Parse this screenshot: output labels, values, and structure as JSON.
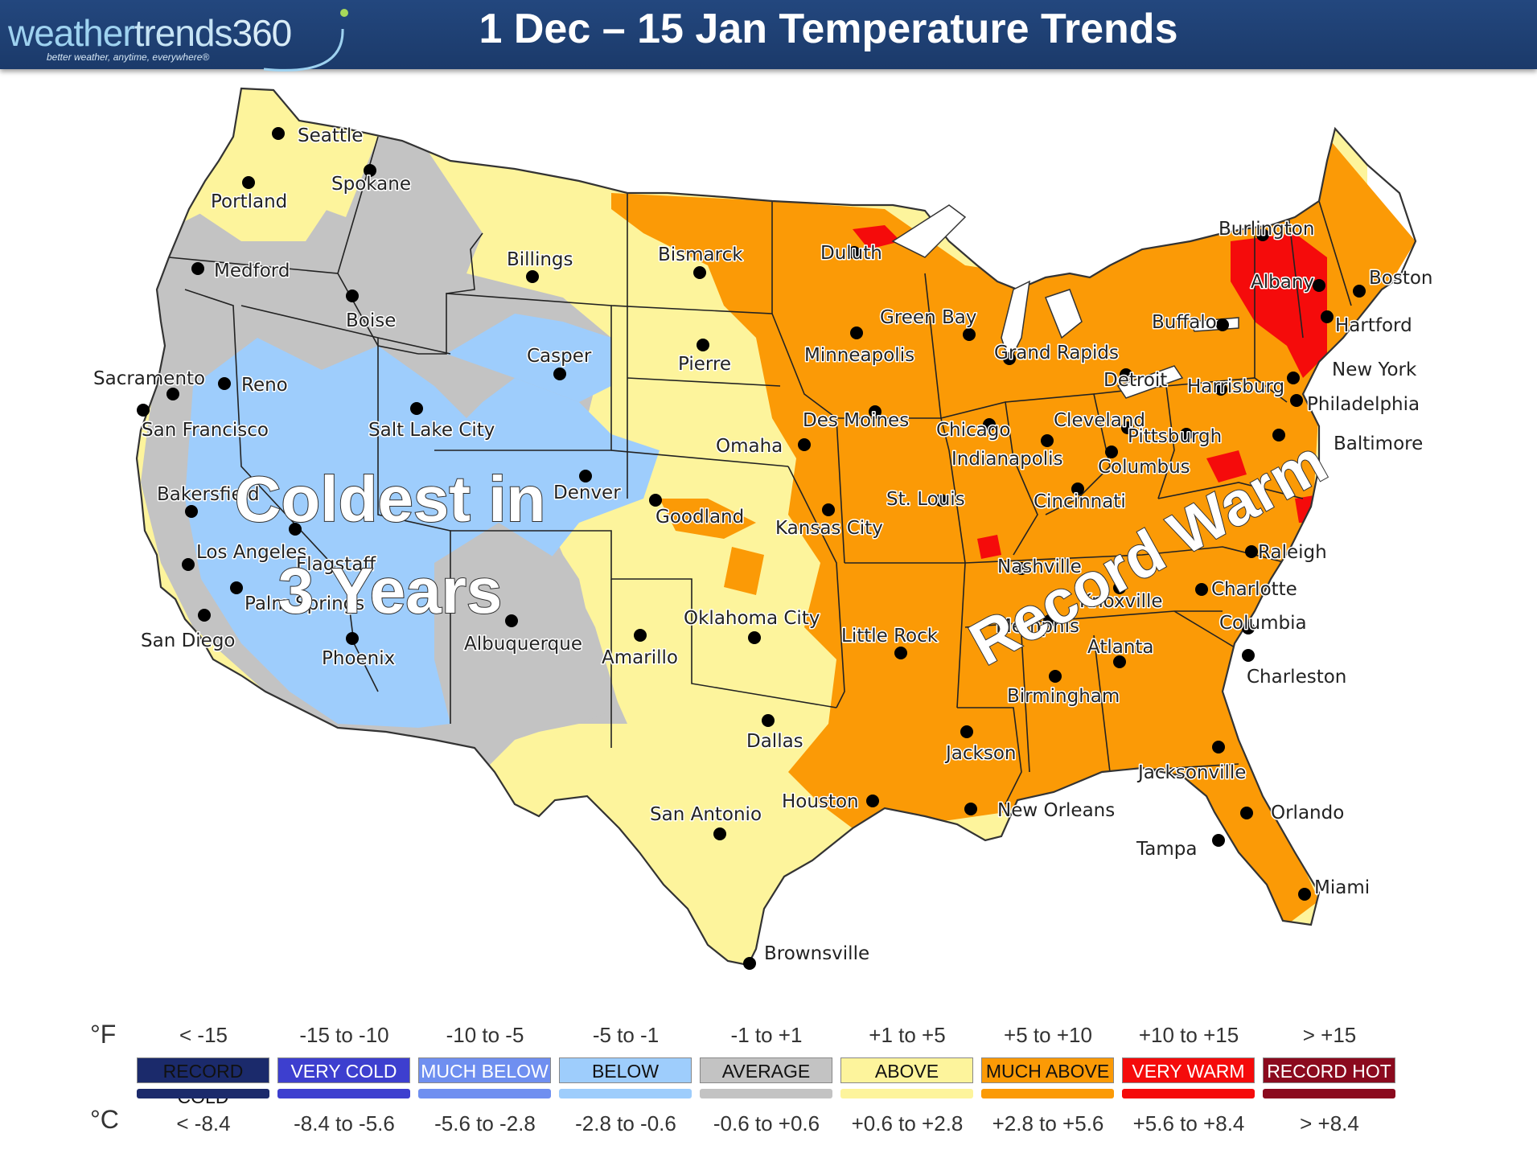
{
  "header": {
    "logo_part1": "weather",
    "logo_part2": "trends",
    "logo_part3": "360",
    "logo_tagline": "better weather, anytime, everywhere®",
    "title": "1 Dec – 15 Jan Temperature Trends"
  },
  "annotations": {
    "coldest_line1": "Coldest in",
    "coldest_line2": "3 Years",
    "record_warm": "Record Warm"
  },
  "cities": [
    "Seattle",
    "Spokane",
    "Portland",
    "Medford",
    "Boise",
    "Billings",
    "Bismarck",
    "Duluth",
    "Burlington",
    "Boston",
    "Albany",
    "Hartford",
    "Buffalo",
    "Green Bay",
    "Minneapolis",
    "Grand Rapids",
    "Detroit",
    "Harrisburg",
    "New York",
    "Philadelphia",
    "Casper",
    "Pierre",
    "Sacramento",
    "Reno",
    "San Francisco",
    "Salt Lake City",
    "Des Moines",
    "Chicago",
    "Cleveland",
    "Pittsburgh",
    "Baltimore",
    "Omaha",
    "Indianapolis",
    "Columbus",
    "Bakersfield",
    "Denver",
    "Goodland",
    "Kansas City",
    "St. Louis",
    "Cincinnati",
    "Los Angeles",
    "Flagstaff",
    "Nashville",
    "Raleigh",
    "Palm Springs",
    "Charlotte",
    "Knoxville",
    "San Diego",
    "Albuquerque",
    "Oklahoma City",
    "Little Rock",
    "Memphis",
    "Columbia",
    "Amarillo",
    "Phoenix",
    "Atlanta",
    "Charleston",
    "Birmingham",
    "Dallas",
    "Jackson",
    "Jacksonville",
    "Houston",
    "New Orleans",
    "San Antonio",
    "Orlando",
    "Tampa",
    "Miami",
    "Brownsville"
  ],
  "legend": {
    "unit_f": "°F",
    "unit_c": "°C",
    "categories": [
      {
        "label": "RECORD COLD",
        "range_f": "< -15",
        "range_c": "< -8.4",
        "color": "#1b2a6b"
      },
      {
        "label": "VERY COLD",
        "range_f": "-15 to -10",
        "range_c": "-8.4 to -5.6",
        "color": "#3d3fcf"
      },
      {
        "label": "MUCH BELOW",
        "range_f": "-10 to -5",
        "range_c": "-5.6 to -2.8",
        "color": "#6f8ff0"
      },
      {
        "label": "BELOW",
        "range_f": "-5 to -1",
        "range_c": "-2.8 to -0.6",
        "color": "#9ecdfc"
      },
      {
        "label": "AVERAGE",
        "range_f": "-1 to +1",
        "range_c": "-0.6 to +0.6",
        "color": "#c3c3c3"
      },
      {
        "label": "ABOVE",
        "range_f": "+1 to +5",
        "range_c": "+0.6 to +2.8",
        "color": "#fdf49c"
      },
      {
        "label": "MUCH ABOVE",
        "range_f": "+5 to +10",
        "range_c": "+2.8 to +5.6",
        "color": "#fb9a06"
      },
      {
        "label": "VERY WARM",
        "range_f": "+10 to +15",
        "range_c": "+5.6 to +8.4",
        "color": "#f50b0b"
      },
      {
        "label": "RECORD HOT",
        "range_f": "> +15",
        "range_c": "> +8.4",
        "color": "#8b0a1e"
      }
    ]
  }
}
